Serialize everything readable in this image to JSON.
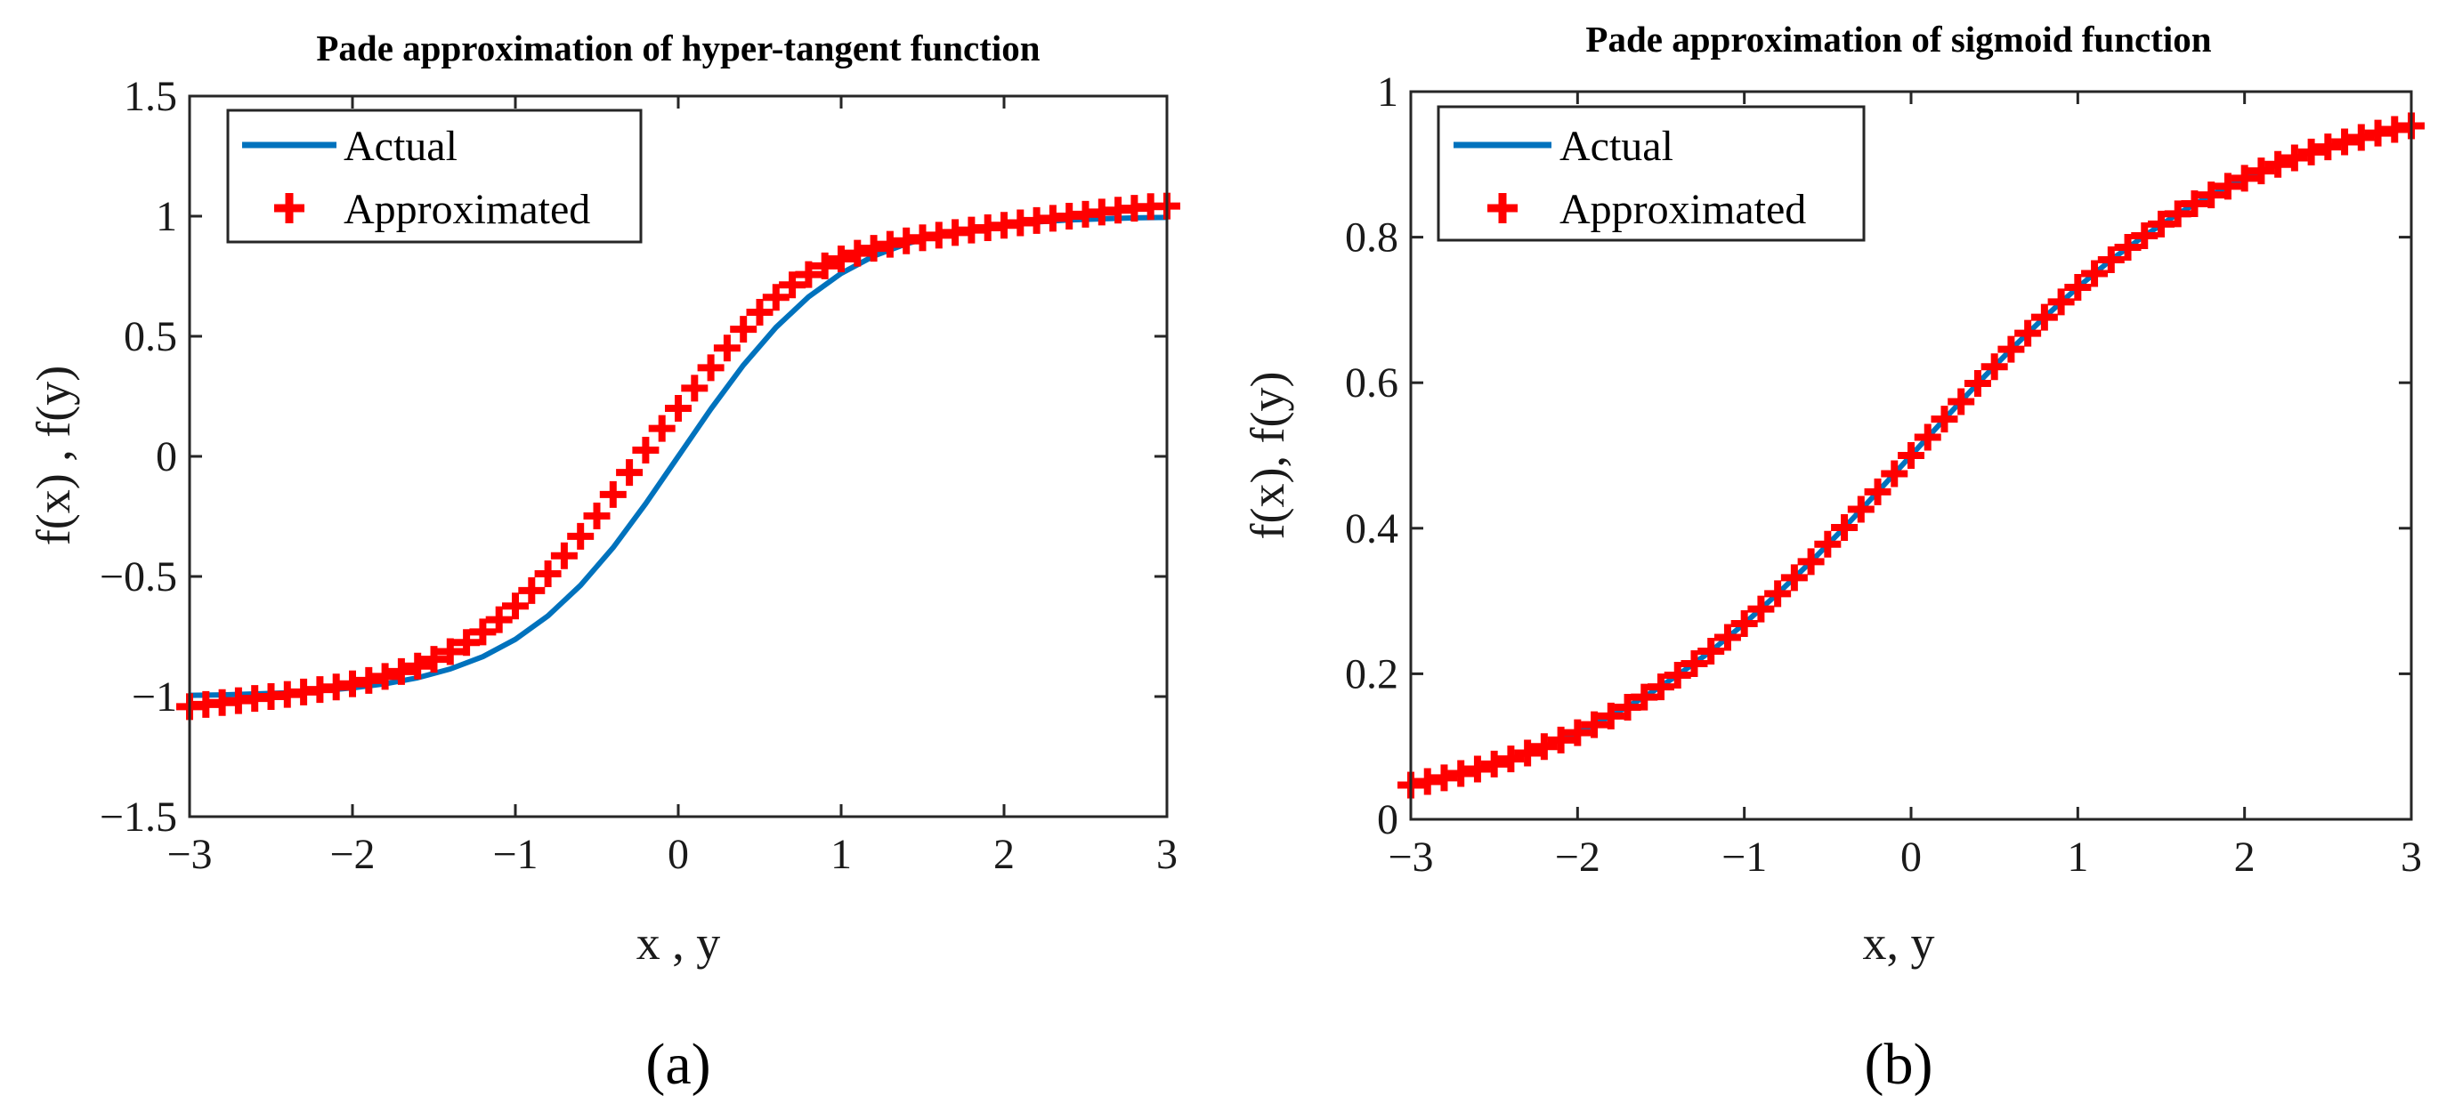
{
  "colors": {
    "actual": "#0072BD",
    "approx": "#FF0000",
    "axis": "#262626"
  },
  "marker": "plus",
  "chart_data": [
    {
      "type": "line",
      "caption": "(a)",
      "title": "Pade approximation of hyper-tangent function",
      "xlabel": "x , y",
      "ylabel": "f(x) , f(y)",
      "xlim": [
        -3,
        3
      ],
      "ylim": [
        -1.5,
        1.5
      ],
      "xticks": [
        -3,
        -2,
        -1,
        0,
        1,
        2,
        3
      ],
      "xtick_labels": [
        "−3",
        "−2",
        "−1",
        "0",
        "1",
        "2",
        "3"
      ],
      "yticks": [
        -1.5,
        -1,
        -0.5,
        0,
        0.5,
        1,
        1.5
      ],
      "ytick_labels": [
        "−1.5",
        "−1",
        "−0.5",
        "0",
        "0.5",
        "1",
        "1.5"
      ],
      "legend": {
        "position": "top-left",
        "entries": [
          "Actual",
          "Approximated"
        ]
      },
      "series": [
        {
          "name": "Actual",
          "style": "line",
          "x": [
            -3.0,
            -2.8,
            -2.6,
            -2.4,
            -2.2,
            -2.0,
            -1.8,
            -1.6,
            -1.4,
            -1.2,
            -1.0,
            -0.8,
            -0.6,
            -0.4,
            -0.2,
            0.0,
            0.2,
            0.4,
            0.6,
            0.8,
            1.0,
            1.2,
            1.4,
            1.6,
            1.8,
            2.0,
            2.2,
            2.4,
            2.6,
            2.8,
            3.0
          ],
          "y": [
            -0.995,
            -0.993,
            -0.989,
            -0.984,
            -0.976,
            -0.964,
            -0.947,
            -0.922,
            -0.885,
            -0.834,
            -0.762,
            -0.664,
            -0.537,
            -0.38,
            -0.197,
            0.0,
            0.197,
            0.38,
            0.537,
            0.664,
            0.762,
            0.834,
            0.885,
            0.922,
            0.947,
            0.964,
            0.976,
            0.984,
            0.989,
            0.993,
            0.995
          ]
        },
        {
          "name": "Approximated",
          "style": "markers",
          "x": [
            -3.0,
            -2.9,
            -2.8,
            -2.7,
            -2.6,
            -2.5,
            -2.4,
            -2.3,
            -2.2,
            -2.1,
            -2.0,
            -1.9,
            -1.8,
            -1.7,
            -1.6,
            -1.5,
            -1.4,
            -1.3,
            -1.2,
            -1.1,
            -1.0,
            -0.9,
            -0.8,
            -0.7,
            -0.6,
            -0.5,
            -0.4,
            -0.3,
            -0.2,
            -0.1,
            0.0,
            0.1,
            0.2,
            0.3,
            0.4,
            0.5,
            0.6,
            0.7,
            0.8,
            0.9,
            1.0,
            1.1,
            1.2,
            1.3,
            1.4,
            1.5,
            1.6,
            1.7,
            1.8,
            1.9,
            2.0,
            2.1,
            2.2,
            2.3,
            2.4,
            2.5,
            2.6,
            2.7,
            2.8,
            2.9,
            3.0
          ],
          "y": [
            -1.042,
            -1.033,
            -1.025,
            -1.017,
            -1.008,
            -1.0,
            -0.991,
            -0.981,
            -0.971,
            -0.96,
            -0.947,
            -0.933,
            -0.916,
            -0.896,
            -0.873,
            -0.845,
            -0.813,
            -0.775,
            -0.731,
            -0.68,
            -0.623,
            -0.559,
            -0.489,
            -0.414,
            -0.333,
            -0.248,
            -0.159,
            -0.067,
            0.026,
            0.116,
            0.2,
            0.284,
            0.369,
            0.451,
            0.529,
            0.6,
            0.662,
            0.714,
            0.757,
            0.793,
            0.822,
            0.846,
            0.866,
            0.883,
            0.897,
            0.91,
            0.921,
            0.932,
            0.942,
            0.952,
            0.962,
            0.972,
            0.982,
            0.991,
            1.0,
            1.008,
            1.017,
            1.025,
            1.033,
            1.04,
            1.042
          ]
        }
      ]
    },
    {
      "type": "line",
      "caption": "(b)",
      "title": "Pade approximation of sigmoid function",
      "xlabel": "x, y",
      "ylabel": "f(x), f(y)",
      "xlim": [
        -3,
        3
      ],
      "ylim": [
        0,
        1
      ],
      "xticks": [
        -3,
        -2,
        -1,
        0,
        1,
        2,
        3
      ],
      "xtick_labels": [
        "−3",
        "−2",
        "−1",
        "0",
        "1",
        "2",
        "3"
      ],
      "yticks": [
        0,
        0.2,
        0.4,
        0.6,
        0.8,
        1
      ],
      "ytick_labels": [
        "0",
        "0.2",
        "0.4",
        "0.6",
        "0.8",
        "1"
      ],
      "legend": {
        "position": "top-left",
        "entries": [
          "Actual",
          "Approximated"
        ]
      },
      "series": [
        {
          "name": "Actual",
          "style": "line",
          "x": [
            -3.0,
            -2.8,
            -2.6,
            -2.4,
            -2.2,
            -2.0,
            -1.8,
            -1.6,
            -1.4,
            -1.2,
            -1.0,
            -0.8,
            -0.6,
            -0.4,
            -0.2,
            0.0,
            0.2,
            0.4,
            0.6,
            0.8,
            1.0,
            1.2,
            1.4,
            1.6,
            1.8,
            2.0,
            2.2,
            2.4,
            2.6,
            2.8,
            3.0
          ],
          "y": [
            0.047,
            0.057,
            0.069,
            0.083,
            0.1,
            0.119,
            0.142,
            0.168,
            0.198,
            0.231,
            0.269,
            0.31,
            0.354,
            0.401,
            0.45,
            0.5,
            0.55,
            0.599,
            0.646,
            0.69,
            0.731,
            0.769,
            0.802,
            0.832,
            0.858,
            0.881,
            0.9,
            0.917,
            0.931,
            0.943,
            0.953
          ]
        },
        {
          "name": "Approximated",
          "style": "markers",
          "x": [
            -3.0,
            -2.9,
            -2.8,
            -2.7,
            -2.6,
            -2.5,
            -2.4,
            -2.3,
            -2.2,
            -2.1,
            -2.0,
            -1.9,
            -1.8,
            -1.7,
            -1.6,
            -1.5,
            -1.4,
            -1.3,
            -1.2,
            -1.1,
            -1.0,
            -0.9,
            -0.8,
            -0.7,
            -0.6,
            -0.5,
            -0.4,
            -0.3,
            -0.2,
            -0.1,
            0.0,
            0.1,
            0.2,
            0.3,
            0.4,
            0.5,
            0.6,
            0.7,
            0.8,
            0.9,
            1.0,
            1.1,
            1.2,
            1.3,
            1.4,
            1.5,
            1.6,
            1.7,
            1.8,
            1.9,
            2.0,
            2.1,
            2.2,
            2.3,
            2.4,
            2.5,
            2.6,
            2.7,
            2.8,
            2.9,
            3.0
          ],
          "y": [
            0.047,
            0.052,
            0.057,
            0.063,
            0.069,
            0.076,
            0.083,
            0.091,
            0.1,
            0.109,
            0.119,
            0.13,
            0.142,
            0.154,
            0.168,
            0.182,
            0.198,
            0.214,
            0.231,
            0.25,
            0.269,
            0.289,
            0.31,
            0.332,
            0.354,
            0.378,
            0.401,
            0.426,
            0.45,
            0.475,
            0.5,
            0.525,
            0.55,
            0.574,
            0.599,
            0.622,
            0.646,
            0.668,
            0.69,
            0.711,
            0.731,
            0.75,
            0.769,
            0.786,
            0.802,
            0.818,
            0.832,
            0.846,
            0.858,
            0.87,
            0.881,
            0.891,
            0.9,
            0.909,
            0.917,
            0.924,
            0.931,
            0.937,
            0.943,
            0.948,
            0.953
          ]
        }
      ]
    }
  ]
}
